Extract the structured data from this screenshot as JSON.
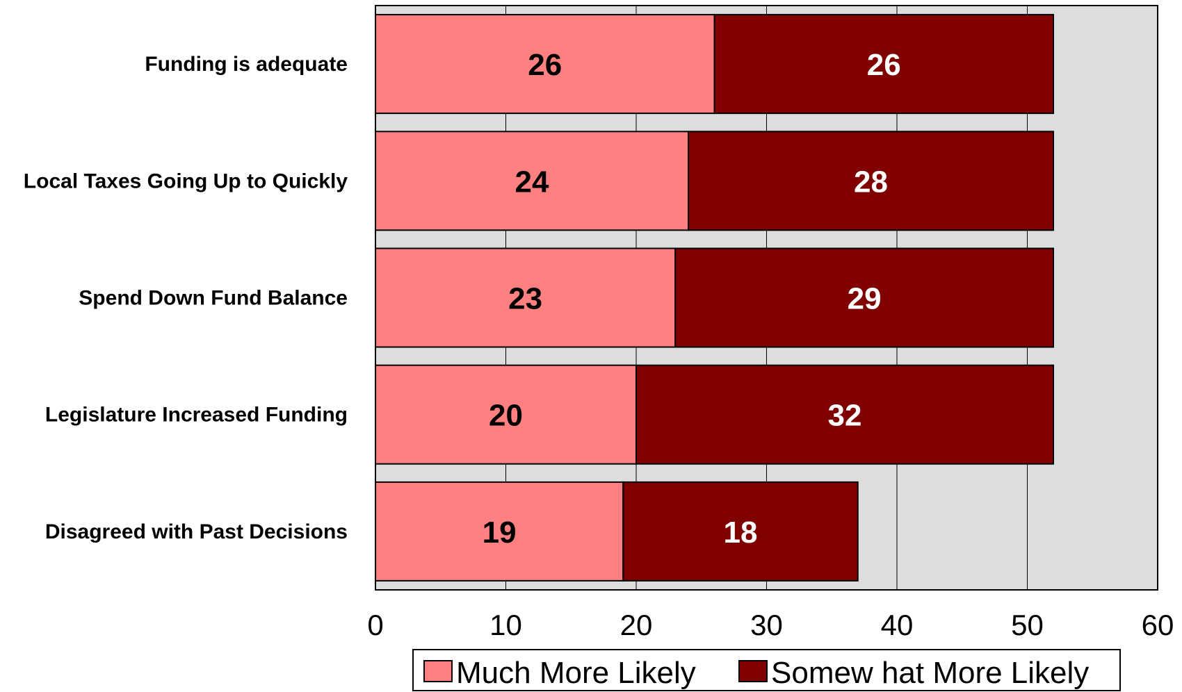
{
  "chart_data": {
    "type": "bar",
    "orientation": "horizontal",
    "stacked": true,
    "categories": [
      "Funding is adequate",
      "Local Taxes Going Up to Quickly",
      "Spend Down Fund Balance",
      "Legislature Increased Funding",
      "Disagreed with Past Decisions"
    ],
    "series": [
      {
        "name": "Much More Likely",
        "values": [
          26,
          24,
          23,
          20,
          19
        ],
        "color": "#ff8080",
        "label_color": "#000000"
      },
      {
        "name": "Somew hat More Likely",
        "values": [
          26,
          28,
          29,
          32,
          18
        ],
        "color": "#800000",
        "label_color": "#ffffff"
      }
    ],
    "xlim": [
      0,
      60
    ],
    "xticks": [
      0,
      10,
      20,
      30,
      40,
      50,
      60
    ],
    "grid": true,
    "plot_background": "#dddddd",
    "legend_position": "bottom"
  }
}
